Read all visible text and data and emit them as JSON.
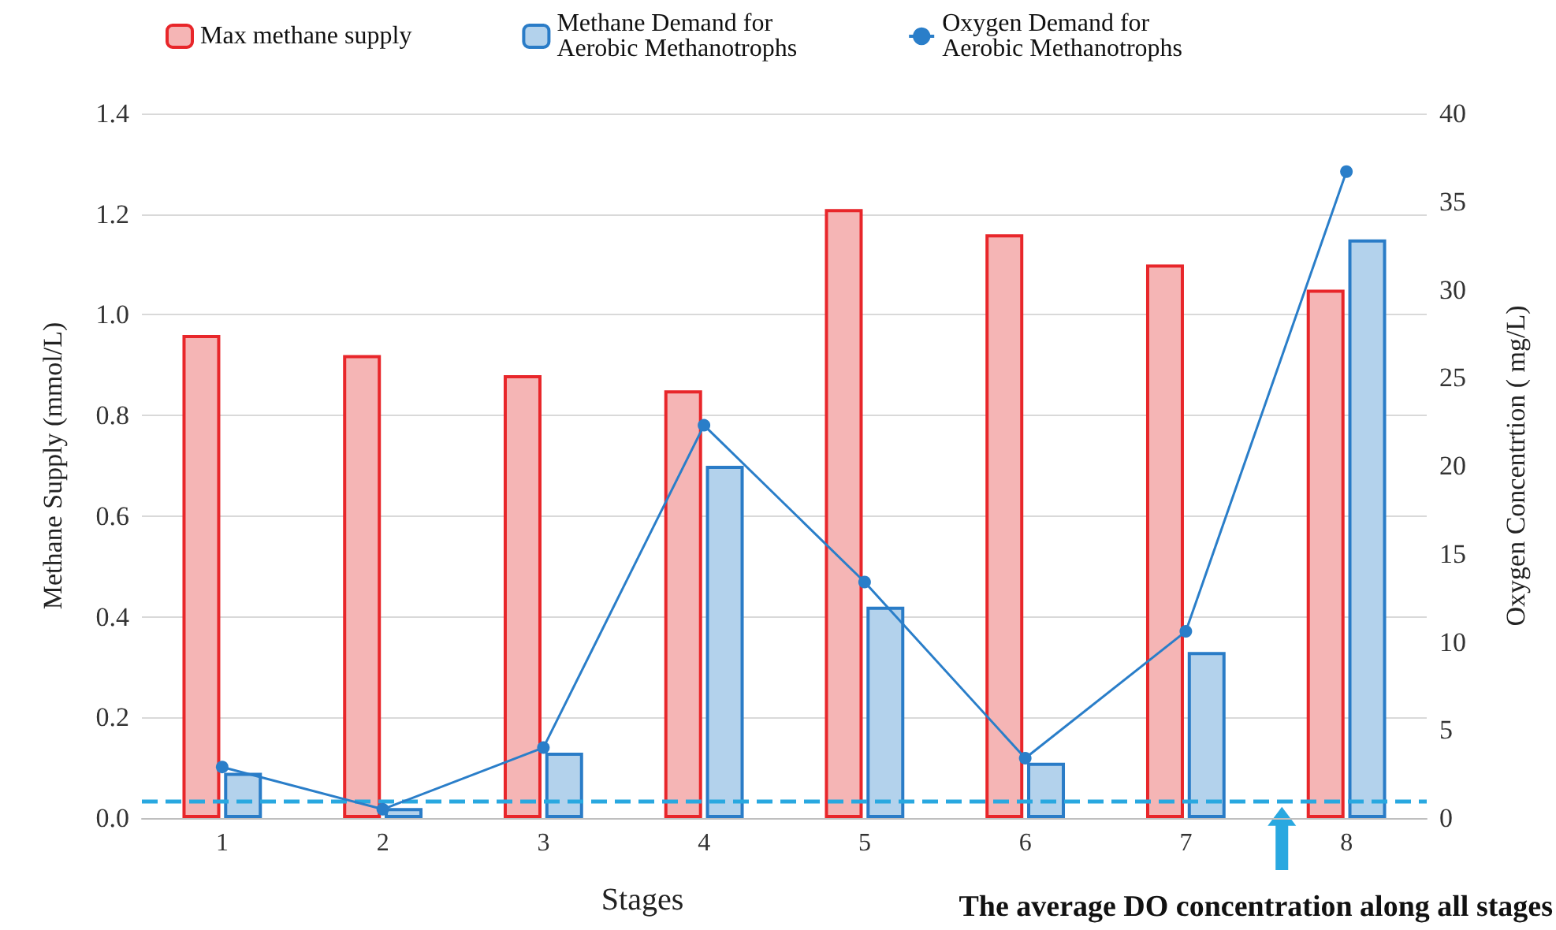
{
  "chart_data": {
    "type": "bar",
    "xlabel": "Stages",
    "ylabel": "Methane Supply (mmol/L)",
    "y2label": "Oxygen Concentrtion ( mg/L)",
    "categories": [
      "1",
      "2",
      "3",
      "4",
      "5",
      "6",
      "7",
      "8"
    ],
    "series": [
      {
        "name": "Max methane supply",
        "color": "#f5b5b5",
        "values": [
          0.96,
          0.92,
          0.88,
          0.85,
          1.21,
          1.16,
          1.1,
          1.05
        ]
      },
      {
        "name": "Methane Demand for Aerobic Methanotrophs",
        "color": "#b3d2ec",
        "values": [
          0.09,
          0.02,
          0.13,
          0.7,
          0.42,
          0.11,
          0.33,
          1.15
        ]
      },
      {
        "name": "Oxygen Demand for Aerobic Methanotrophs",
        "type": "line",
        "axis": "y2",
        "color": "#2a7ec9",
        "marker": "circle",
        "line_style": "solid",
        "values": [
          2.9,
          0.5,
          4.0,
          22.3,
          13.4,
          3.4,
          10.6,
          36.7
        ]
      }
    ],
    "ylim": [
      0,
      1.4
    ],
    "yticks": [
      {
        "value": 0,
        "label": "0.0"
      },
      {
        "value": 0.2,
        "label": "0.2"
      },
      {
        "value": 0.4,
        "label": "0.4"
      },
      {
        "value": 0.6,
        "label": "0.6"
      },
      {
        "value": 0.8,
        "label": "0.8"
      },
      {
        "value": 1,
        "label": "1.0"
      },
      {
        "value": 1.2,
        "label": "1.2"
      },
      {
        "value": 1.4,
        "label": "1.4"
      }
    ],
    "y2lim": [
      0,
      40
    ],
    "y2ticks": [
      0,
      5,
      10,
      15,
      20,
      25,
      30,
      35,
      40
    ],
    "ref_lines": [
      {
        "axis": "y2",
        "value": 1,
        "label": "The average DO concentration along all stages",
        "color": "#29a8e0",
        "line_style": "dashed"
      }
    ],
    "grid": "y",
    "legend": "top"
  }
}
